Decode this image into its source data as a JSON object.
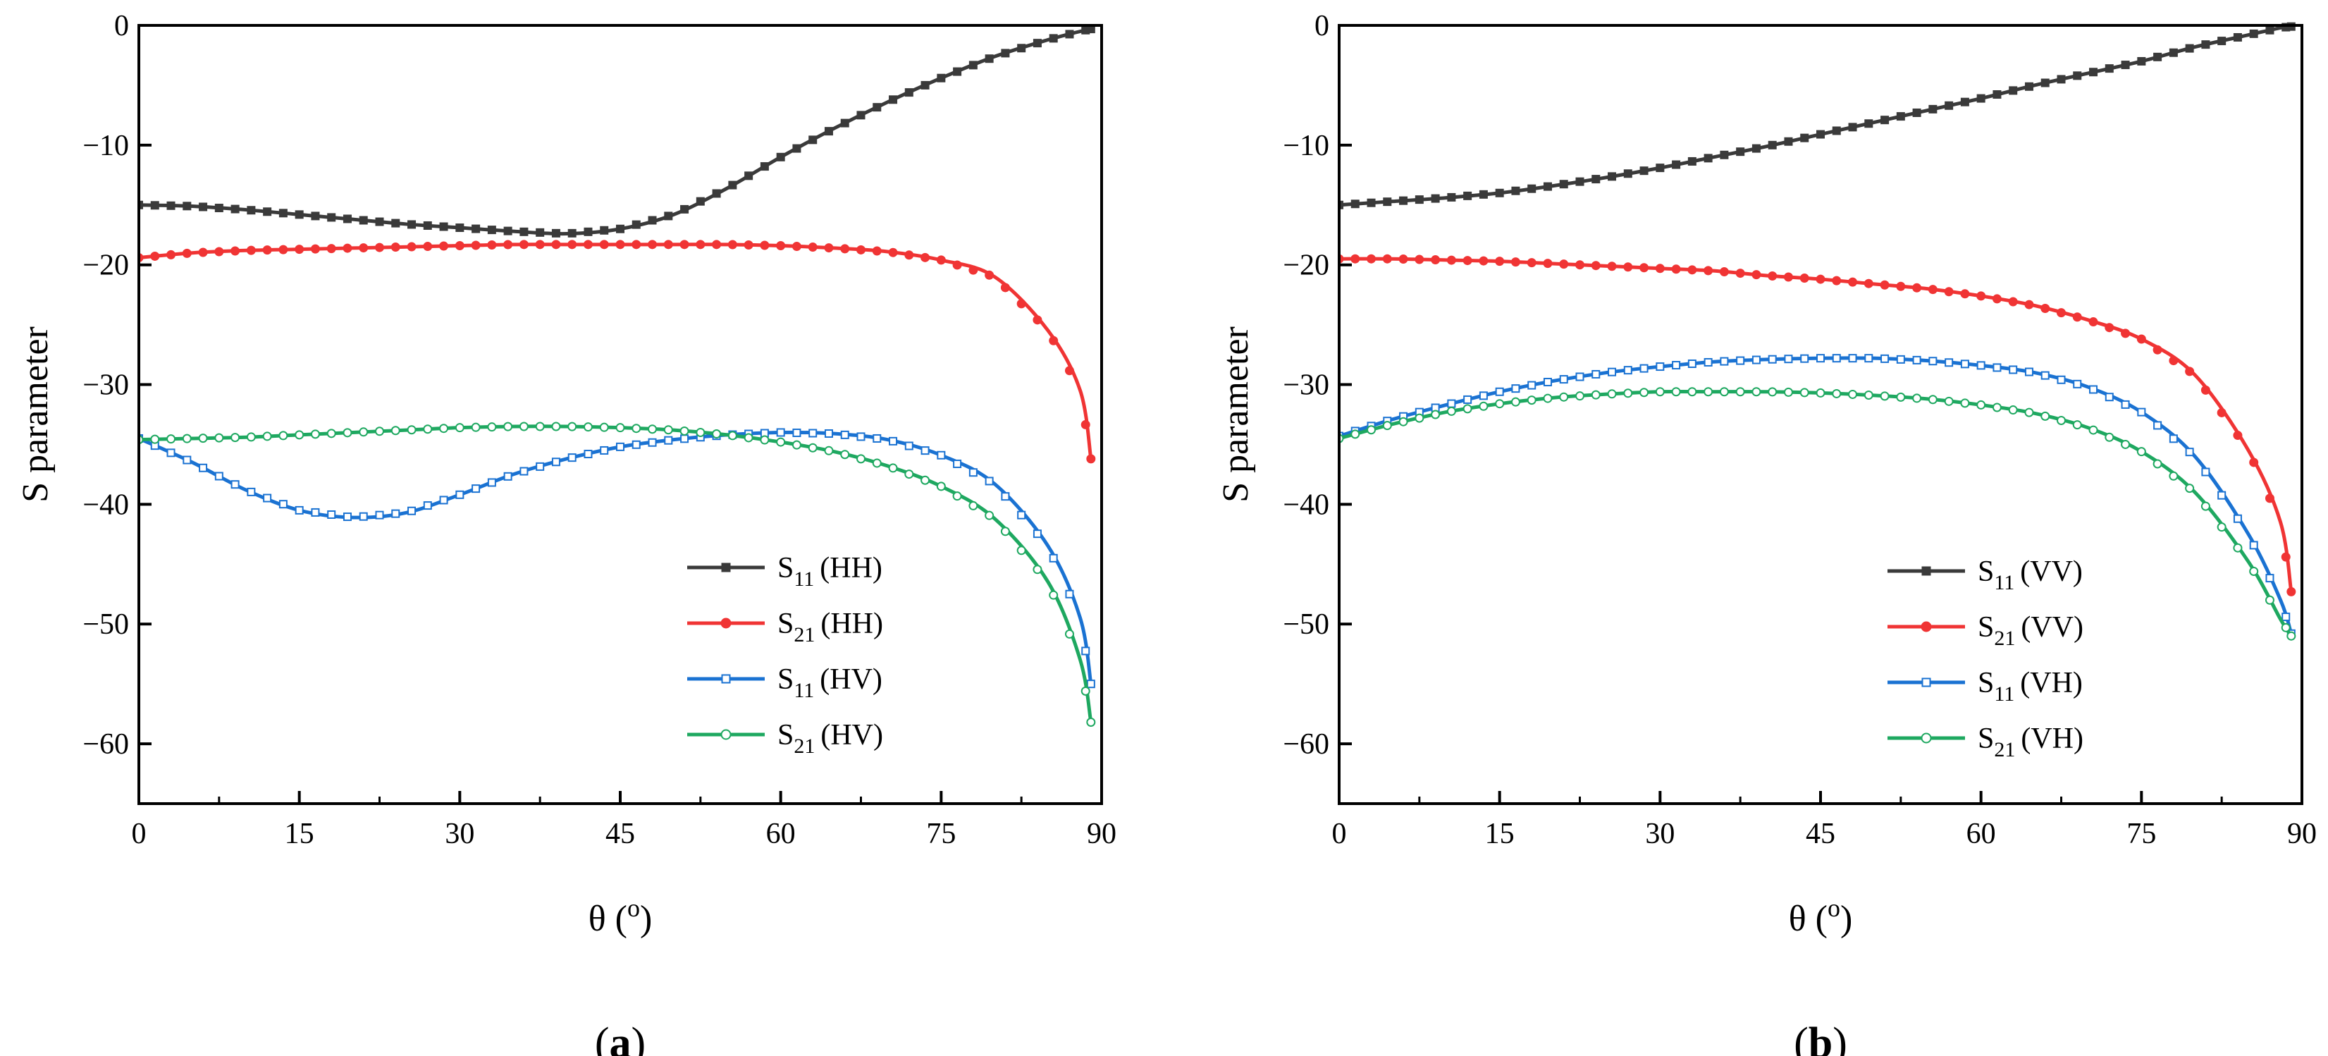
{
  "chart_data": [
    {
      "type": "line",
      "panel_label": "a",
      "xlabel": "θ (",
      "xlabel_sup": "o",
      "xlabel_end": ")",
      "ylabel": "S parameter",
      "xlim": [
        0,
        90
      ],
      "ylim": [
        -65,
        0
      ],
      "xticks": [
        0,
        15,
        30,
        45,
        60,
        75,
        90
      ],
      "yticks": [
        0,
        -10,
        -20,
        -30,
        -40,
        -50,
        -60
      ],
      "legend_position": "bottom-right",
      "x": [
        0,
        5,
        10,
        15,
        20,
        25,
        30,
        35,
        40,
        45,
        50,
        55,
        60,
        65,
        70,
        75,
        80,
        85,
        88,
        89
      ],
      "series": [
        {
          "name": "S11 (HH)",
          "sym": "S",
          "sub": "11",
          "tag": "(HH)",
          "color": "#3a3a3a",
          "marker": "square",
          "filled": true,
          "values": [
            -15,
            -15.1,
            -15.4,
            -15.8,
            -16.2,
            -16.6,
            -16.9,
            -17.2,
            -17.4,
            -17.0,
            -15.8,
            -13.6,
            -11.0,
            -8.6,
            -6.4,
            -4.4,
            -2.6,
            -1.2,
            -0.5,
            -0.3
          ]
        },
        {
          "name": "S21 (HH)",
          "sym": "S",
          "sub": "21",
          "tag": "(HH)",
          "color": "#f03434",
          "marker": "circle",
          "filled": true,
          "values": [
            -19.4,
            -19.0,
            -18.8,
            -18.7,
            -18.6,
            -18.5,
            -18.4,
            -18.3,
            -18.3,
            -18.3,
            -18.3,
            -18.3,
            -18.4,
            -18.6,
            -18.9,
            -19.6,
            -21.0,
            -25.5,
            -30.5,
            -36.2
          ]
        },
        {
          "name": "S11 (HV)",
          "sym": "S",
          "sub": "11",
          "tag": "(HV)",
          "color": "#1a72d2",
          "marker": "square",
          "filled": false,
          "values": [
            -34.5,
            -36.5,
            -38.8,
            -40.5,
            -41.1,
            -40.7,
            -39.2,
            -37.5,
            -36.2,
            -35.2,
            -34.6,
            -34.2,
            -34.0,
            -34.1,
            -34.6,
            -35.9,
            -38.3,
            -43.5,
            -49.5,
            -55.0
          ]
        },
        {
          "name": "S21 (HV)",
          "sym": "S",
          "sub": "21",
          "tag": "(HV)",
          "color": "#1ea860",
          "marker": "circle",
          "filled": false,
          "values": [
            -34.6,
            -34.5,
            -34.4,
            -34.2,
            -34.0,
            -33.8,
            -33.6,
            -33.5,
            -33.5,
            -33.6,
            -33.8,
            -34.2,
            -34.8,
            -35.6,
            -36.8,
            -38.5,
            -41.2,
            -46.5,
            -53.0,
            -58.2
          ]
        }
      ]
    },
    {
      "type": "line",
      "panel_label": "b",
      "xlabel": "θ (",
      "xlabel_sup": "o",
      "xlabel_end": ")",
      "ylabel": "S parameter",
      "xlim": [
        0,
        90
      ],
      "ylim": [
        -65,
        0
      ],
      "xticks": [
        0,
        15,
        30,
        45,
        60,
        75,
        90
      ],
      "yticks": [
        0,
        -10,
        -20,
        -30,
        -40,
        -50,
        -60
      ],
      "legend_position": "bottom-right",
      "x": [
        0,
        5,
        10,
        15,
        20,
        25,
        30,
        35,
        40,
        45,
        50,
        55,
        60,
        65,
        70,
        75,
        80,
        85,
        88,
        89
      ],
      "series": [
        {
          "name": "S11 (VV)",
          "sym": "S",
          "sub": "11",
          "tag": "(VV)",
          "color": "#3a3a3a",
          "marker": "square",
          "filled": true,
          "values": [
            -15,
            -14.7,
            -14.4,
            -14.0,
            -13.4,
            -12.7,
            -11.9,
            -11.0,
            -10.1,
            -9.1,
            -8.1,
            -7.1,
            -6.1,
            -5.0,
            -4.0,
            -3.0,
            -1.8,
            -0.8,
            -0.2,
            -0.1
          ]
        },
        {
          "name": "S21 (VV)",
          "sym": "S",
          "sub": "21",
          "tag": "(VV)",
          "color": "#f03434",
          "marker": "circle",
          "filled": true,
          "values": [
            -19.5,
            -19.5,
            -19.6,
            -19.7,
            -19.9,
            -20.1,
            -20.3,
            -20.5,
            -20.9,
            -21.2,
            -21.6,
            -22.0,
            -22.6,
            -23.4,
            -24.6,
            -26.2,
            -29.2,
            -35.5,
            -41.5,
            -47.3
          ]
        },
        {
          "name": "S11 (VH)",
          "sym": "S",
          "sub": "11",
          "tag": "(VH)",
          "color": "#1a72d2",
          "marker": "square",
          "filled": false,
          "values": [
            -34.3,
            -32.9,
            -31.7,
            -30.6,
            -29.7,
            -29.0,
            -28.5,
            -28.1,
            -27.9,
            -27.8,
            -27.8,
            -28.0,
            -28.4,
            -29.0,
            -30.2,
            -32.3,
            -36.0,
            -42.5,
            -48.0,
            -50.8
          ]
        },
        {
          "name": "S21 (VH)",
          "sym": "S",
          "sub": "21",
          "tag": "(VH)",
          "color": "#1ea860",
          "marker": "circle",
          "filled": false,
          "values": [
            -34.5,
            -33.3,
            -32.3,
            -31.6,
            -31.1,
            -30.8,
            -30.6,
            -30.6,
            -30.6,
            -30.7,
            -30.9,
            -31.2,
            -31.7,
            -32.4,
            -33.6,
            -35.6,
            -39.0,
            -44.8,
            -49.6,
            -51.0
          ]
        }
      ]
    }
  ]
}
